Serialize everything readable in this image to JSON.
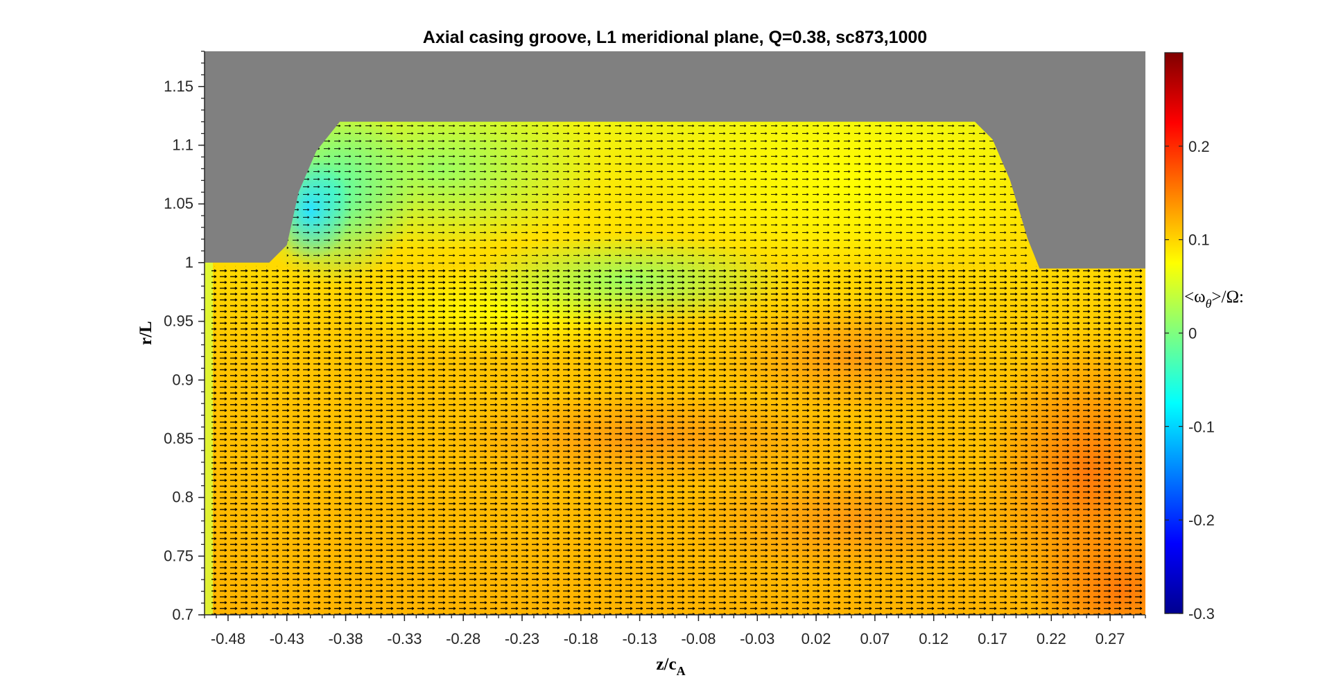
{
  "chart_data": {
    "type": "heatmap",
    "title": "Axial casing groove, L1 meridional plane, Q=0.38, sc873,1000",
    "xlabel_main": "z/c",
    "xlabel_sub": "A",
    "ylabel": "r/L",
    "colorbar_label": {
      "prefix": "<ω",
      "sub": "θ",
      "suffix": ">/Ω:"
    },
    "xlim": [
      -0.5,
      0.3
    ],
    "ylim": [
      0.7,
      1.18
    ],
    "clim": [
      -0.3,
      0.3
    ],
    "x_ticks": [
      -0.48,
      -0.43,
      -0.38,
      -0.33,
      -0.28,
      -0.23,
      -0.18,
      -0.13,
      -0.08,
      -0.03,
      0.02,
      0.07,
      0.12,
      0.17,
      0.22,
      0.27
    ],
    "x_tick_labels": [
      "-0.48",
      "-0.43",
      "-0.38",
      "-0.33",
      "-0.28",
      "-0.23",
      "-0.18",
      "-0.13",
      "-0.08",
      "-0.03",
      "0.02",
      "0.07",
      "0.12",
      "0.17",
      "0.22",
      "0.27"
    ],
    "y_ticks": [
      0.7,
      0.75,
      0.8,
      0.85,
      0.9,
      0.95,
      1.0,
      1.05,
      1.1,
      1.15
    ],
    "y_tick_labels": [
      "0.7",
      "0.75",
      "0.8",
      "0.85",
      "0.9",
      "0.95",
      "1",
      "1.05",
      "1.1",
      "1.15"
    ],
    "colorbar_ticks": [
      -0.3,
      -0.2,
      -0.1,
      0,
      0.1,
      0.2
    ],
    "colorbar_tick_labels": [
      "-0.3",
      "-0.2",
      "-0.1",
      "0",
      "0.1",
      "0.2"
    ],
    "colormap": "jet",
    "solid_region_color": "#808080",
    "groove_outline": [
      [
        -0.5,
        1.0
      ],
      [
        -0.445,
        1.0
      ],
      [
        -0.43,
        1.015
      ],
      [
        -0.42,
        1.06
      ],
      [
        -0.405,
        1.095
      ],
      [
        -0.385,
        1.12
      ],
      [
        0.155,
        1.12
      ],
      [
        0.17,
        1.105
      ],
      [
        0.185,
        1.07
      ],
      [
        0.2,
        1.02
      ],
      [
        0.21,
        0.995
      ],
      [
        0.3,
        0.995
      ]
    ],
    "vorticity_samples": [
      {
        "z": -0.49,
        "r": 0.85,
        "w": 0.05
      },
      {
        "z": -0.4,
        "r": 1.05,
        "w": -0.06
      },
      {
        "z": -0.33,
        "r": 1.09,
        "w": -0.02
      },
      {
        "z": -0.18,
        "r": 1.06,
        "w": 0.02
      },
      {
        "z": 0.05,
        "r": 1.08,
        "w": 0.07
      },
      {
        "z": 0.15,
        "r": 1.05,
        "w": 0.09
      },
      {
        "z": -0.18,
        "r": 0.97,
        "w": 0.04
      },
      {
        "z": 0.05,
        "r": 0.93,
        "w": 0.14
      },
      {
        "z": 0.25,
        "r": 0.87,
        "w": 0.16
      },
      {
        "z": 0.28,
        "r": 0.72,
        "w": 0.18
      },
      {
        "z": -0.3,
        "r": 0.8,
        "w": 0.1
      },
      {
        "z": 0.0,
        "r": 0.8,
        "w": 0.12
      }
    ]
  }
}
